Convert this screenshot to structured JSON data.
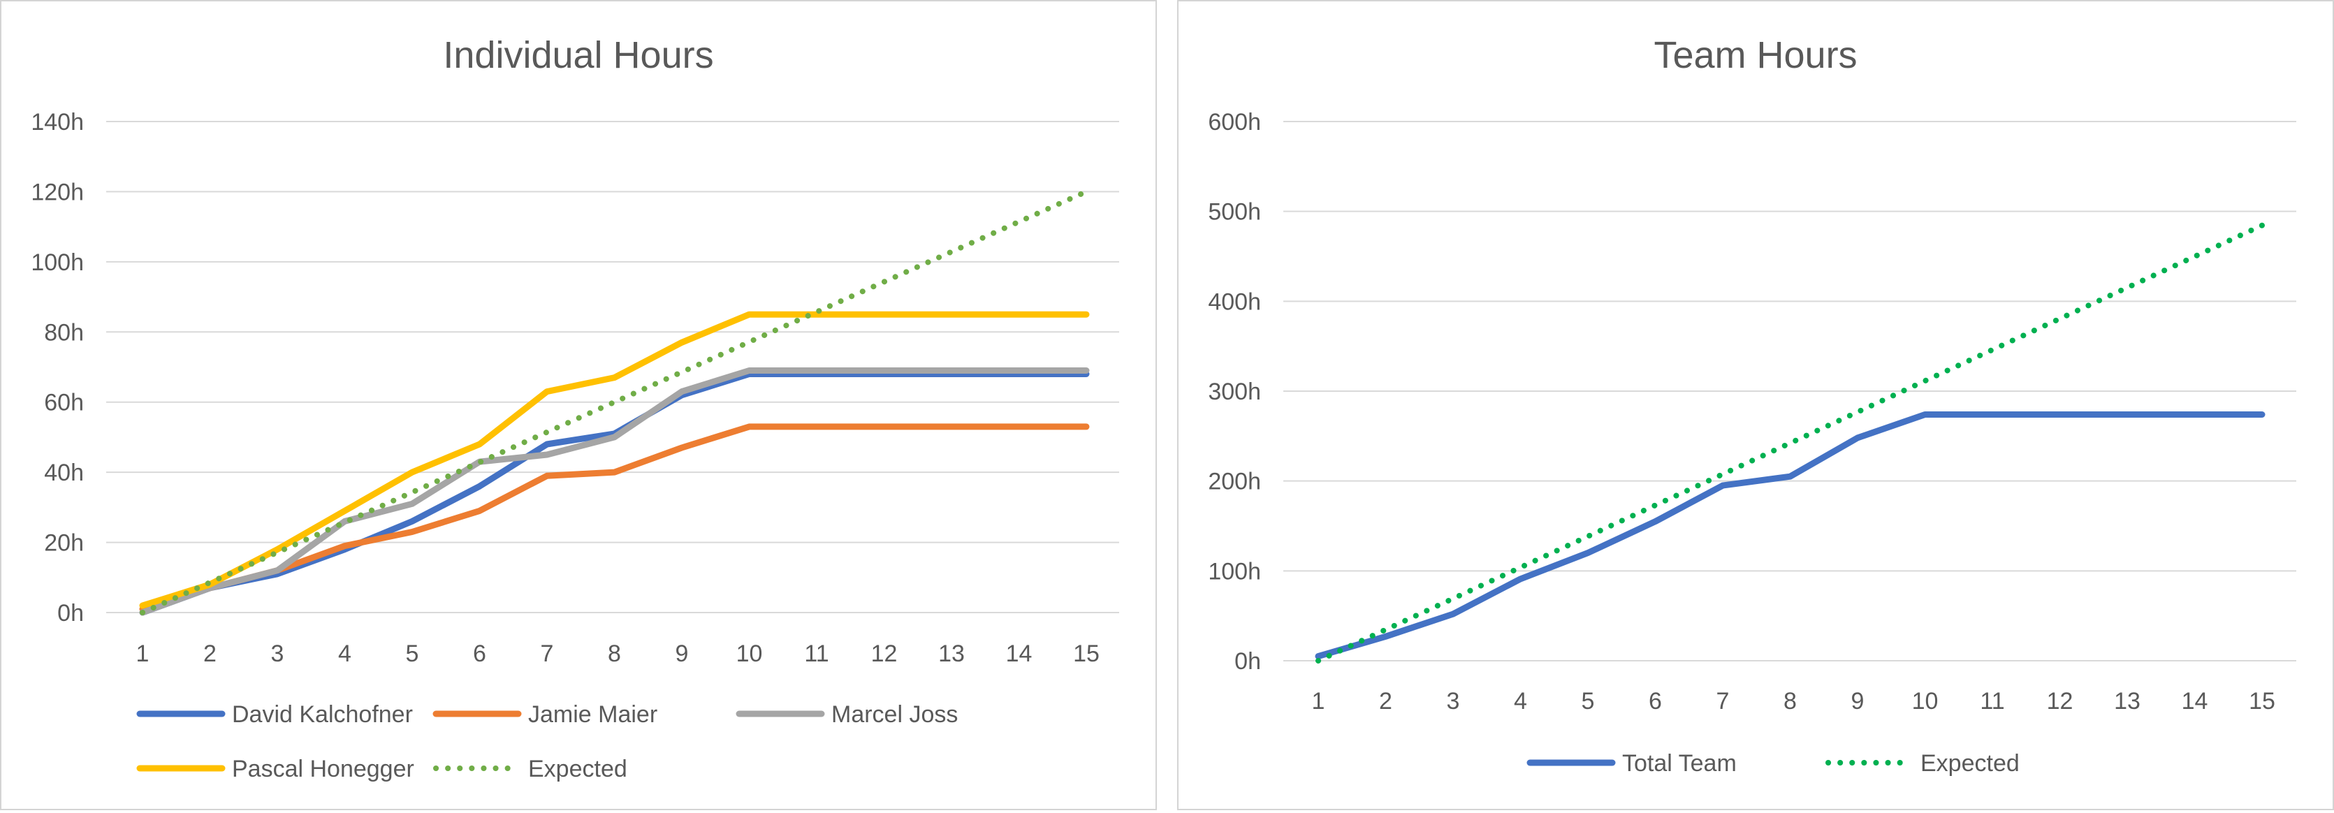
{
  "chart_data": [
    {
      "type": "line",
      "title": "Individual Hours",
      "x": [
        1,
        2,
        3,
        4,
        5,
        6,
        7,
        8,
        9,
        10,
        11,
        12,
        13,
        14,
        15
      ],
      "y_ticks": [
        "0h",
        "20h",
        "40h",
        "60h",
        "80h",
        "100h",
        "120h",
        "140h"
      ],
      "ylim": [
        0,
        140
      ],
      "grid": true,
      "legend_position": "bottom",
      "series": [
        {
          "name": "David Kalchofner",
          "color": "#4472C4",
          "dashed": false,
          "values": [
            0,
            7,
            11,
            18,
            26,
            36,
            48,
            51,
            62,
            68,
            68,
            68,
            68,
            68,
            68
          ]
        },
        {
          "name": "Jamie Maier",
          "color": "#ED7D31",
          "dashed": false,
          "values": [
            1,
            7,
            12,
            19,
            23,
            29,
            39,
            40,
            47,
            53,
            53,
            53,
            53,
            53,
            53
          ]
        },
        {
          "name": "Marcel Joss",
          "color": "#A5A5A5",
          "dashed": false,
          "values": [
            0,
            7,
            12,
            26,
            31,
            43,
            45,
            50,
            63,
            69,
            69,
            69,
            69,
            69,
            69
          ]
        },
        {
          "name": "Pascal Honegger",
          "color": "#FFC000",
          "dashed": false,
          "values": [
            2,
            8,
            18,
            29,
            40,
            48,
            63,
            67,
            77,
            85,
            85,
            85,
            85,
            85,
            85
          ]
        },
        {
          "name": "Expected",
          "color": "#70AD47",
          "dashed": true,
          "values": [
            0,
            8.57,
            17.14,
            25.71,
            34.29,
            42.86,
            51.43,
            60,
            68.57,
            77.14,
            85.71,
            94.29,
            102.86,
            111.43,
            120
          ]
        }
      ]
    },
    {
      "type": "line",
      "title": "Team Hours",
      "x": [
        1,
        2,
        3,
        4,
        5,
        6,
        7,
        8,
        9,
        10,
        11,
        12,
        13,
        14,
        15
      ],
      "y_ticks": [
        "0h",
        "100h",
        "200h",
        "300h",
        "400h",
        "500h",
        "600h"
      ],
      "ylim": [
        0,
        600
      ],
      "grid": true,
      "legend_position": "bottom",
      "series": [
        {
          "name": "Total Team",
          "color": "#4472C4",
          "dashed": false,
          "values": [
            5,
            27,
            52,
            91,
            120,
            155,
            195,
            205,
            248,
            274,
            274,
            274,
            274,
            274,
            274
          ]
        },
        {
          "name": "Expected",
          "color": "#00B050",
          "dashed": true,
          "values": [
            0,
            34.6,
            69.2,
            103.8,
            138.4,
            173,
            207.6,
            242.2,
            276.8,
            311.4,
            346,
            380.6,
            415.2,
            449.8,
            484.4
          ]
        }
      ]
    }
  ]
}
